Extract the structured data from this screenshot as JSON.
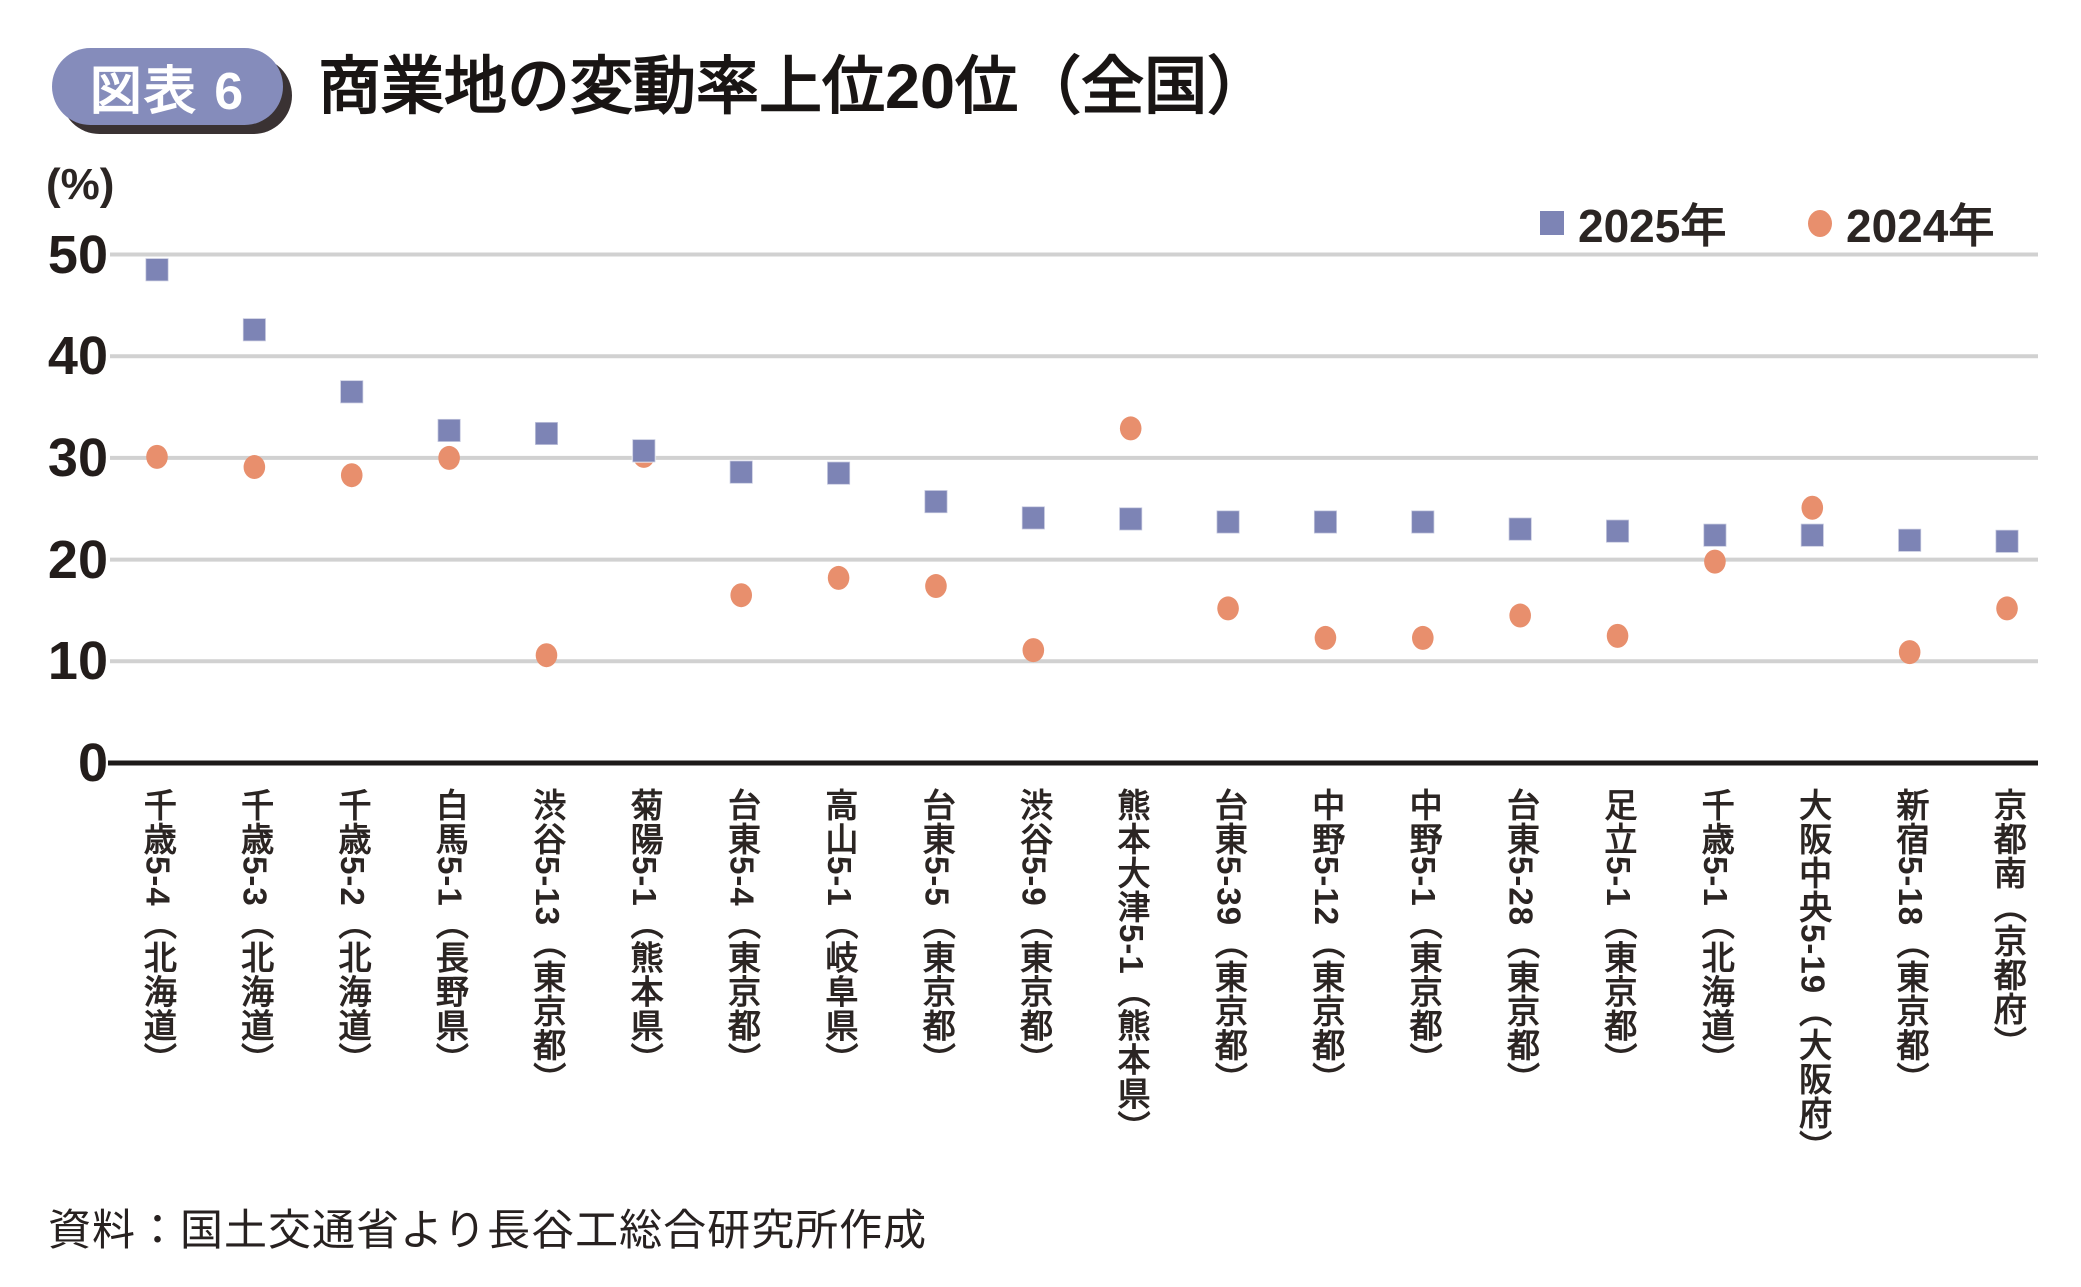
{
  "header": {
    "badge_label": "図表 6",
    "title": "商業地の変動率上位20位（全国）"
  },
  "legend": [
    {
      "label": "2025年",
      "shape": "square",
      "color": "#7d84b5"
    },
    {
      "label": "2024年",
      "shape": "circle",
      "color": "#e88f6d"
    }
  ],
  "axis": {
    "unit_label": "(%)",
    "y_ticks": [
      50,
      40,
      30,
      20,
      10,
      0
    ]
  },
  "chart_data": {
    "type": "scatter",
    "title": "商業地の変動率上位20位（全国）",
    "ylabel": "(%)",
    "ylim": [
      0,
      50
    ],
    "y_ticks": [
      0,
      10,
      20,
      30,
      40,
      50
    ],
    "grid": "horizontal",
    "legend_position": "top-right",
    "categories": [
      "千歳5-4（北海道）",
      "千歳5-3（北海道）",
      "千歳5-2（北海道）",
      "白馬5-1（長野県）",
      "渋谷5-13（東京都）",
      "菊陽5-1（熊本県）",
      "台東5-4（東京都）",
      "高山5-1（岐阜県）",
      "台東5-5（東京都）",
      "渋谷5-9（東京都）",
      "熊本大津5-1（熊本県）",
      "台東5-39（東京都）",
      "中野5-12（東京都）",
      "中野5-1（東京都）",
      "台東5-28（東京都）",
      "足立5-1（東京都）",
      "千歳5-1（北海道）",
      "大阪中央5-19（大阪府）",
      "新宿5-18（東京都）",
      "京都南（京都府）"
    ],
    "series": [
      {
        "name": "2025年",
        "marker": "square",
        "color": "#7d84b5",
        "values": [
          48.5,
          42.6,
          36.5,
          32.7,
          32.4,
          30.7,
          28.6,
          28.5,
          25.7,
          24.1,
          24.0,
          23.7,
          23.7,
          23.7,
          23.0,
          22.8,
          22.4,
          22.4,
          21.9,
          21.8
        ]
      },
      {
        "name": "2024年",
        "marker": "circle",
        "color": "#e88f6d",
        "values": [
          30.1,
          29.1,
          28.3,
          30.0,
          10.6,
          30.2,
          16.5,
          18.2,
          17.4,
          11.1,
          32.9,
          15.2,
          12.3,
          12.3,
          14.5,
          12.5,
          19.8,
          25.1,
          10.9,
          15.2
        ]
      }
    ]
  },
  "footer": {
    "source": "資料：国土交通省より長谷工総合研究所作成"
  },
  "colors": {
    "badge_bg": "#858cbb",
    "badge_text": "#ffffff",
    "badge_shadow": "#3a3233",
    "grid": "#d1d1d1",
    "axis": "#1d1a19",
    "text": "#2b2523",
    "series_2025": "#7d84b5",
    "series_2024": "#e88f6d"
  }
}
